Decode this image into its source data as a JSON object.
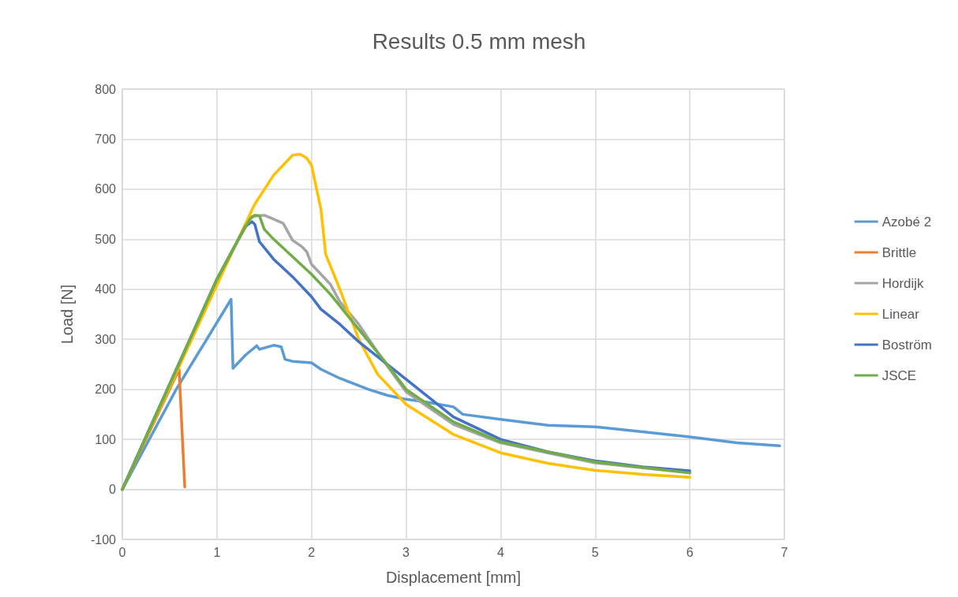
{
  "chart_data": {
    "type": "line",
    "title": "Results 0.5 mm mesh",
    "xlabel": "Displacement [mm]",
    "ylabel": "Load [N]",
    "xlim": [
      0,
      7
    ],
    "xticks": [
      0,
      1,
      2,
      3,
      4,
      5,
      6,
      7
    ],
    "ylim": [
      -100,
      800
    ],
    "yticks": [
      -100,
      0,
      100,
      200,
      300,
      400,
      500,
      600,
      700,
      800
    ],
    "grid": true,
    "legend": "right",
    "marker": "none",
    "line_style": "solid",
    "series": [
      {
        "name": "Azobé 2",
        "color": "#5b9bd5",
        "x": [
          0,
          0.57,
          1.15,
          1.17,
          1.3,
          1.42,
          1.45,
          1.6,
          1.68,
          1.72,
          1.8,
          2.0,
          2.1,
          2.3,
          2.6,
          2.8,
          3.0,
          3.2,
          3.5,
          3.6,
          4.0,
          4.5,
          5.0,
          5.5,
          6.0,
          6.5,
          6.95
        ],
        "values": [
          0,
          200,
          380,
          242,
          268,
          287,
          280,
          288,
          285,
          260,
          256,
          253,
          240,
          222,
          200,
          188,
          180,
          175,
          165,
          150,
          140,
          128,
          125,
          115,
          105,
          93,
          87
        ]
      },
      {
        "name": "Brittle",
        "color": "#ed7d31",
        "x": [
          0,
          0.6,
          0.66
        ],
        "values": [
          0,
          240,
          5
        ]
      },
      {
        "name": "Hordijk",
        "color": "#a5a5a5",
        "x": [
          0,
          1,
          1.2,
          1.35,
          1.5,
          1.6,
          1.7,
          1.8,
          1.9,
          1.95,
          2.0,
          2.1,
          2.2,
          2.3,
          2.5,
          2.75,
          3.0,
          3.5,
          4.0,
          5.0,
          6.0
        ],
        "values": [
          0,
          420,
          490,
          545,
          548,
          540,
          532,
          498,
          485,
          475,
          450,
          430,
          410,
          375,
          330,
          260,
          195,
          130,
          93,
          53,
          33
        ]
      },
      {
        "name": "Linear",
        "color": "#ffc000",
        "x": [
          0,
          1.2,
          1.4,
          1.6,
          1.8,
          1.88,
          1.95,
          2.0,
          2.1,
          2.15,
          2.3,
          2.5,
          2.7,
          3.0,
          3.5,
          4.0,
          4.5,
          5.0,
          5.5,
          6.0
        ],
        "values": [
          0,
          490,
          570,
          628,
          668,
          670,
          662,
          648,
          560,
          470,
          400,
          300,
          230,
          170,
          110,
          73,
          52,
          38,
          30,
          24
        ]
      },
      {
        "name": "Boström",
        "color": "#4472c4",
        "x": [
          0,
          1,
          1.2,
          1.3,
          1.37,
          1.4,
          1.45,
          1.6,
          1.8,
          2.0,
          2.1,
          2.3,
          2.5,
          2.8,
          3.0,
          3.5,
          4.0,
          4.5,
          5.0,
          5.5,
          6.0
        ],
        "values": [
          0,
          420,
          490,
          525,
          535,
          530,
          495,
          460,
          425,
          385,
          360,
          330,
          295,
          250,
          220,
          145,
          100,
          75,
          57,
          45,
          37
        ]
      },
      {
        "name": "JSCE",
        "color": "#70ad47",
        "x": [
          0,
          1,
          1.2,
          1.35,
          1.4,
          1.45,
          1.5,
          1.6,
          1.8,
          2.0,
          2.2,
          2.5,
          2.8,
          3.0,
          3.5,
          4.0,
          5.0,
          6.0
        ],
        "values": [
          0,
          420,
          490,
          540,
          548,
          547,
          520,
          500,
          465,
          430,
          390,
          320,
          250,
          200,
          135,
          95,
          55,
          33
        ]
      }
    ]
  }
}
